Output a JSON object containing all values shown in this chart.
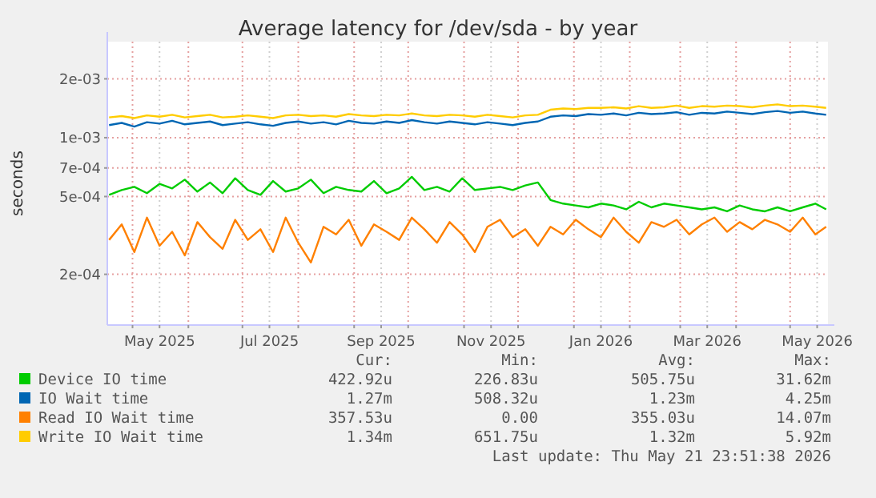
{
  "chart_data": {
    "type": "line",
    "title": "Average latency for /dev/sda - by year",
    "ylabel": "seconds",
    "log": "y",
    "grid": true,
    "legend": "bottom",
    "line_style": "solid",
    "marker": "none",
    "xlim": [
      "2025-04-17",
      "2026-05-22"
    ],
    "xticks": [
      {
        "value": "2025-05-01",
        "label": null
      },
      {
        "value": "2025-05-16",
        "label": "May 2025"
      },
      {
        "value": "2025-06-01",
        "label": null
      },
      {
        "value": "2025-07-01",
        "label": null
      },
      {
        "value": "2025-07-16",
        "label": "Jul 2025"
      },
      {
        "value": "2025-08-01",
        "label": null
      },
      {
        "value": "2025-09-01",
        "label": null
      },
      {
        "value": "2025-09-16",
        "label": "Sep 2025"
      },
      {
        "value": "2025-10-01",
        "label": null
      },
      {
        "value": "2025-11-01",
        "label": null
      },
      {
        "value": "2025-11-16",
        "label": "Nov 2025"
      },
      {
        "value": "2025-12-01",
        "label": null
      },
      {
        "value": "2026-01-01",
        "label": null
      },
      {
        "value": "2026-01-16",
        "label": "Jan 2026"
      },
      {
        "value": "2026-02-01",
        "label": null
      },
      {
        "value": "2026-03-01",
        "label": null
      },
      {
        "value": "2026-03-16",
        "label": "Mar 2026"
      },
      {
        "value": "2026-04-01",
        "label": null
      },
      {
        "value": "2026-05-01",
        "label": null
      },
      {
        "value": "2026-05-16",
        "label": "May 2026"
      }
    ],
    "ylim": [
      0.00011,
      0.0031
    ],
    "yticks": [
      {
        "value": 0.0002,
        "label": "2e-04"
      },
      {
        "value": 0.0005,
        "label": "5e-04"
      },
      {
        "value": 0.0007,
        "label": "7e-04"
      },
      {
        "value": 0.001,
        "label": "1e-03"
      },
      {
        "value": 0.002,
        "label": "2e-03"
      }
    ],
    "x": [
      "2025-04-18",
      "2025-04-25",
      "2025-05-02",
      "2025-05-09",
      "2025-05-16",
      "2025-05-23",
      "2025-05-30",
      "2025-06-06",
      "2025-06-13",
      "2025-06-20",
      "2025-06-27",
      "2025-07-04",
      "2025-07-11",
      "2025-07-18",
      "2025-07-25",
      "2025-08-01",
      "2025-08-08",
      "2025-08-15",
      "2025-08-22",
      "2025-08-29",
      "2025-09-05",
      "2025-09-12",
      "2025-09-19",
      "2025-09-26",
      "2025-10-03",
      "2025-10-10",
      "2025-10-17",
      "2025-10-24",
      "2025-10-31",
      "2025-11-07",
      "2025-11-14",
      "2025-11-21",
      "2025-11-28",
      "2025-12-05",
      "2025-12-12",
      "2025-12-19",
      "2025-12-26",
      "2026-01-02",
      "2026-01-09",
      "2026-01-16",
      "2026-01-23",
      "2026-01-30",
      "2026-02-06",
      "2026-02-13",
      "2026-02-20",
      "2026-02-27",
      "2026-03-06",
      "2026-03-13",
      "2026-03-20",
      "2026-03-27",
      "2026-04-03",
      "2026-04-10",
      "2026-04-17",
      "2026-04-24",
      "2026-05-01",
      "2026-05-08",
      "2026-05-15",
      "2026-05-21"
    ],
    "series": [
      {
        "name": "Device IO time",
        "color": "#00cc00",
        "values": [
          0.00051,
          0.00054,
          0.00056,
          0.00052,
          0.00058,
          0.00055,
          0.00061,
          0.00053,
          0.00059,
          0.00052,
          0.00062,
          0.00054,
          0.00051,
          0.0006,
          0.00053,
          0.00055,
          0.00061,
          0.00052,
          0.00056,
          0.00054,
          0.00053,
          0.0006,
          0.00052,
          0.00055,
          0.00063,
          0.00054,
          0.00056,
          0.00053,
          0.00062,
          0.00054,
          0.00055,
          0.00056,
          0.00054,
          0.00057,
          0.00059,
          0.00048,
          0.00046,
          0.00045,
          0.00044,
          0.00046,
          0.00045,
          0.00043,
          0.00047,
          0.00044,
          0.00046,
          0.00045,
          0.00044,
          0.00043,
          0.00044,
          0.00042,
          0.00045,
          0.00043,
          0.00042,
          0.00044,
          0.00042,
          0.00044,
          0.00046,
          0.00043
        ]
      },
      {
        "name": "IO Wait time",
        "color": "#0066b3",
        "values": [
          0.00116,
          0.00119,
          0.00114,
          0.0012,
          0.00118,
          0.00122,
          0.00117,
          0.00119,
          0.00121,
          0.00116,
          0.00118,
          0.0012,
          0.00117,
          0.00115,
          0.00119,
          0.00121,
          0.00118,
          0.0012,
          0.00117,
          0.00122,
          0.00119,
          0.00118,
          0.00121,
          0.00119,
          0.00123,
          0.0012,
          0.00118,
          0.00121,
          0.00119,
          0.00117,
          0.0012,
          0.00118,
          0.00116,
          0.00119,
          0.00121,
          0.00128,
          0.0013,
          0.00129,
          0.00132,
          0.00131,
          0.00133,
          0.0013,
          0.00134,
          0.00132,
          0.00133,
          0.00135,
          0.00131,
          0.00134,
          0.00133,
          0.00136,
          0.00134,
          0.00132,
          0.00135,
          0.00137,
          0.00134,
          0.00136,
          0.00133,
          0.00131
        ]
      },
      {
        "name": "Read IO Wait time",
        "color": "#ff8000",
        "values": [
          0.0003,
          0.00036,
          0.00026,
          0.00039,
          0.00028,
          0.00033,
          0.00025,
          0.00037,
          0.00031,
          0.00027,
          0.00038,
          0.0003,
          0.00034,
          0.00026,
          0.00039,
          0.00029,
          0.00023,
          0.00035,
          0.00032,
          0.00038,
          0.00028,
          0.00036,
          0.00033,
          0.0003,
          0.00039,
          0.00034,
          0.00029,
          0.00037,
          0.00032,
          0.00026,
          0.00035,
          0.00038,
          0.00031,
          0.00034,
          0.00028,
          0.00035,
          0.00032,
          0.00038,
          0.00034,
          0.00031,
          0.00039,
          0.00033,
          0.00029,
          0.00037,
          0.00035,
          0.00038,
          0.00032,
          0.00036,
          0.00039,
          0.00033,
          0.00037,
          0.00034,
          0.00038,
          0.00036,
          0.00033,
          0.00039,
          0.00032,
          0.00035
        ]
      },
      {
        "name": "Write IO Wait time",
        "color": "#ffcc00",
        "values": [
          0.00127,
          0.00129,
          0.00126,
          0.0013,
          0.00128,
          0.00131,
          0.00127,
          0.00129,
          0.00131,
          0.00127,
          0.00128,
          0.0013,
          0.00128,
          0.00126,
          0.0013,
          0.00131,
          0.00129,
          0.0013,
          0.00128,
          0.00132,
          0.0013,
          0.00129,
          0.00131,
          0.0013,
          0.00133,
          0.0013,
          0.00129,
          0.00131,
          0.0013,
          0.00128,
          0.00131,
          0.00129,
          0.00127,
          0.0013,
          0.00131,
          0.00139,
          0.00141,
          0.0014,
          0.00142,
          0.00142,
          0.00143,
          0.00141,
          0.00145,
          0.00142,
          0.00143,
          0.00146,
          0.00142,
          0.00145,
          0.00144,
          0.00146,
          0.00145,
          0.00143,
          0.00146,
          0.00148,
          0.00145,
          0.00146,
          0.00144,
          0.00142
        ]
      }
    ],
    "annotations": [
      "Cur:",
      "Min:",
      "Avg:",
      "Max:",
      "422.92u",
      "226.83u",
      "505.75u",
      "31.62m",
      "1.27m",
      "508.32u",
      "1.23m",
      "4.25m",
      "357.53u",
      "0.00",
      "355.03u",
      "14.07m",
      "1.34m",
      "651.75u",
      "1.32m",
      "5.92m",
      "Last update: Thu May 21 23:51:38 2026"
    ]
  }
}
